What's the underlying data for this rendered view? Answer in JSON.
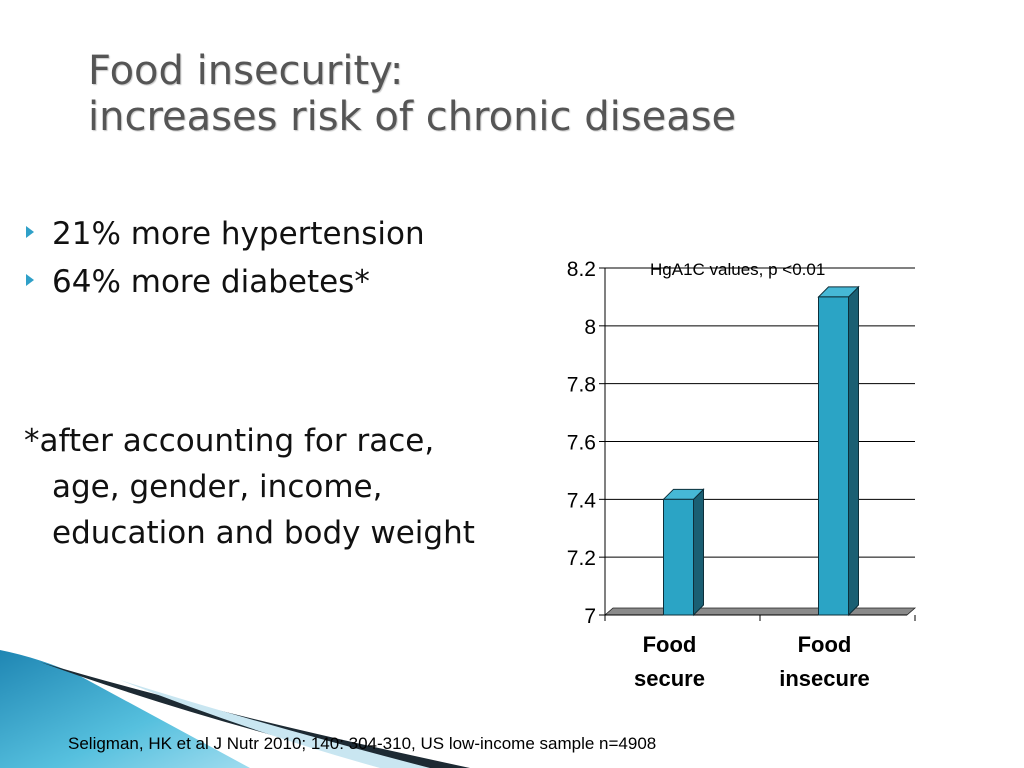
{
  "slide": {
    "title_line1": "Food insecurity:",
    "title_line2": "increases risk of chronic disease",
    "bullets": [
      "21% more hypertension",
      "64% more  diabetes*"
    ],
    "footnote": "*after accounting for race, age, gender, income, education and body weight",
    "citation": "Seligman, HK et al J Nutr 2010; 140: 304-310, US low-income  sample n=4908"
  },
  "colors": {
    "bar_front": "#2ba4c5",
    "bar_side": "#1a5f73",
    "bar_top": "#46b8d6",
    "floor": "#8a8a8a",
    "accent": "#2fa0c8"
  },
  "chart_data": {
    "type": "bar",
    "title": "HgA1C values, p <0.01",
    "categories": [
      "Food secure",
      "Food insecure"
    ],
    "category_lines": [
      [
        "Food",
        "secure"
      ],
      [
        "Food",
        "insecure"
      ]
    ],
    "values": [
      7.4,
      8.1
    ],
    "ylim": [
      7,
      8.2
    ],
    "yticks": [
      7,
      7.2,
      7.4,
      7.6,
      7.8,
      8,
      8.2
    ],
    "ytick_labels": [
      "7",
      "7.2",
      "7.4",
      "7.6",
      "7.8",
      "8",
      "8.2"
    ],
    "grid": true,
    "legend": "none",
    "xlabel": "",
    "ylabel": ""
  }
}
